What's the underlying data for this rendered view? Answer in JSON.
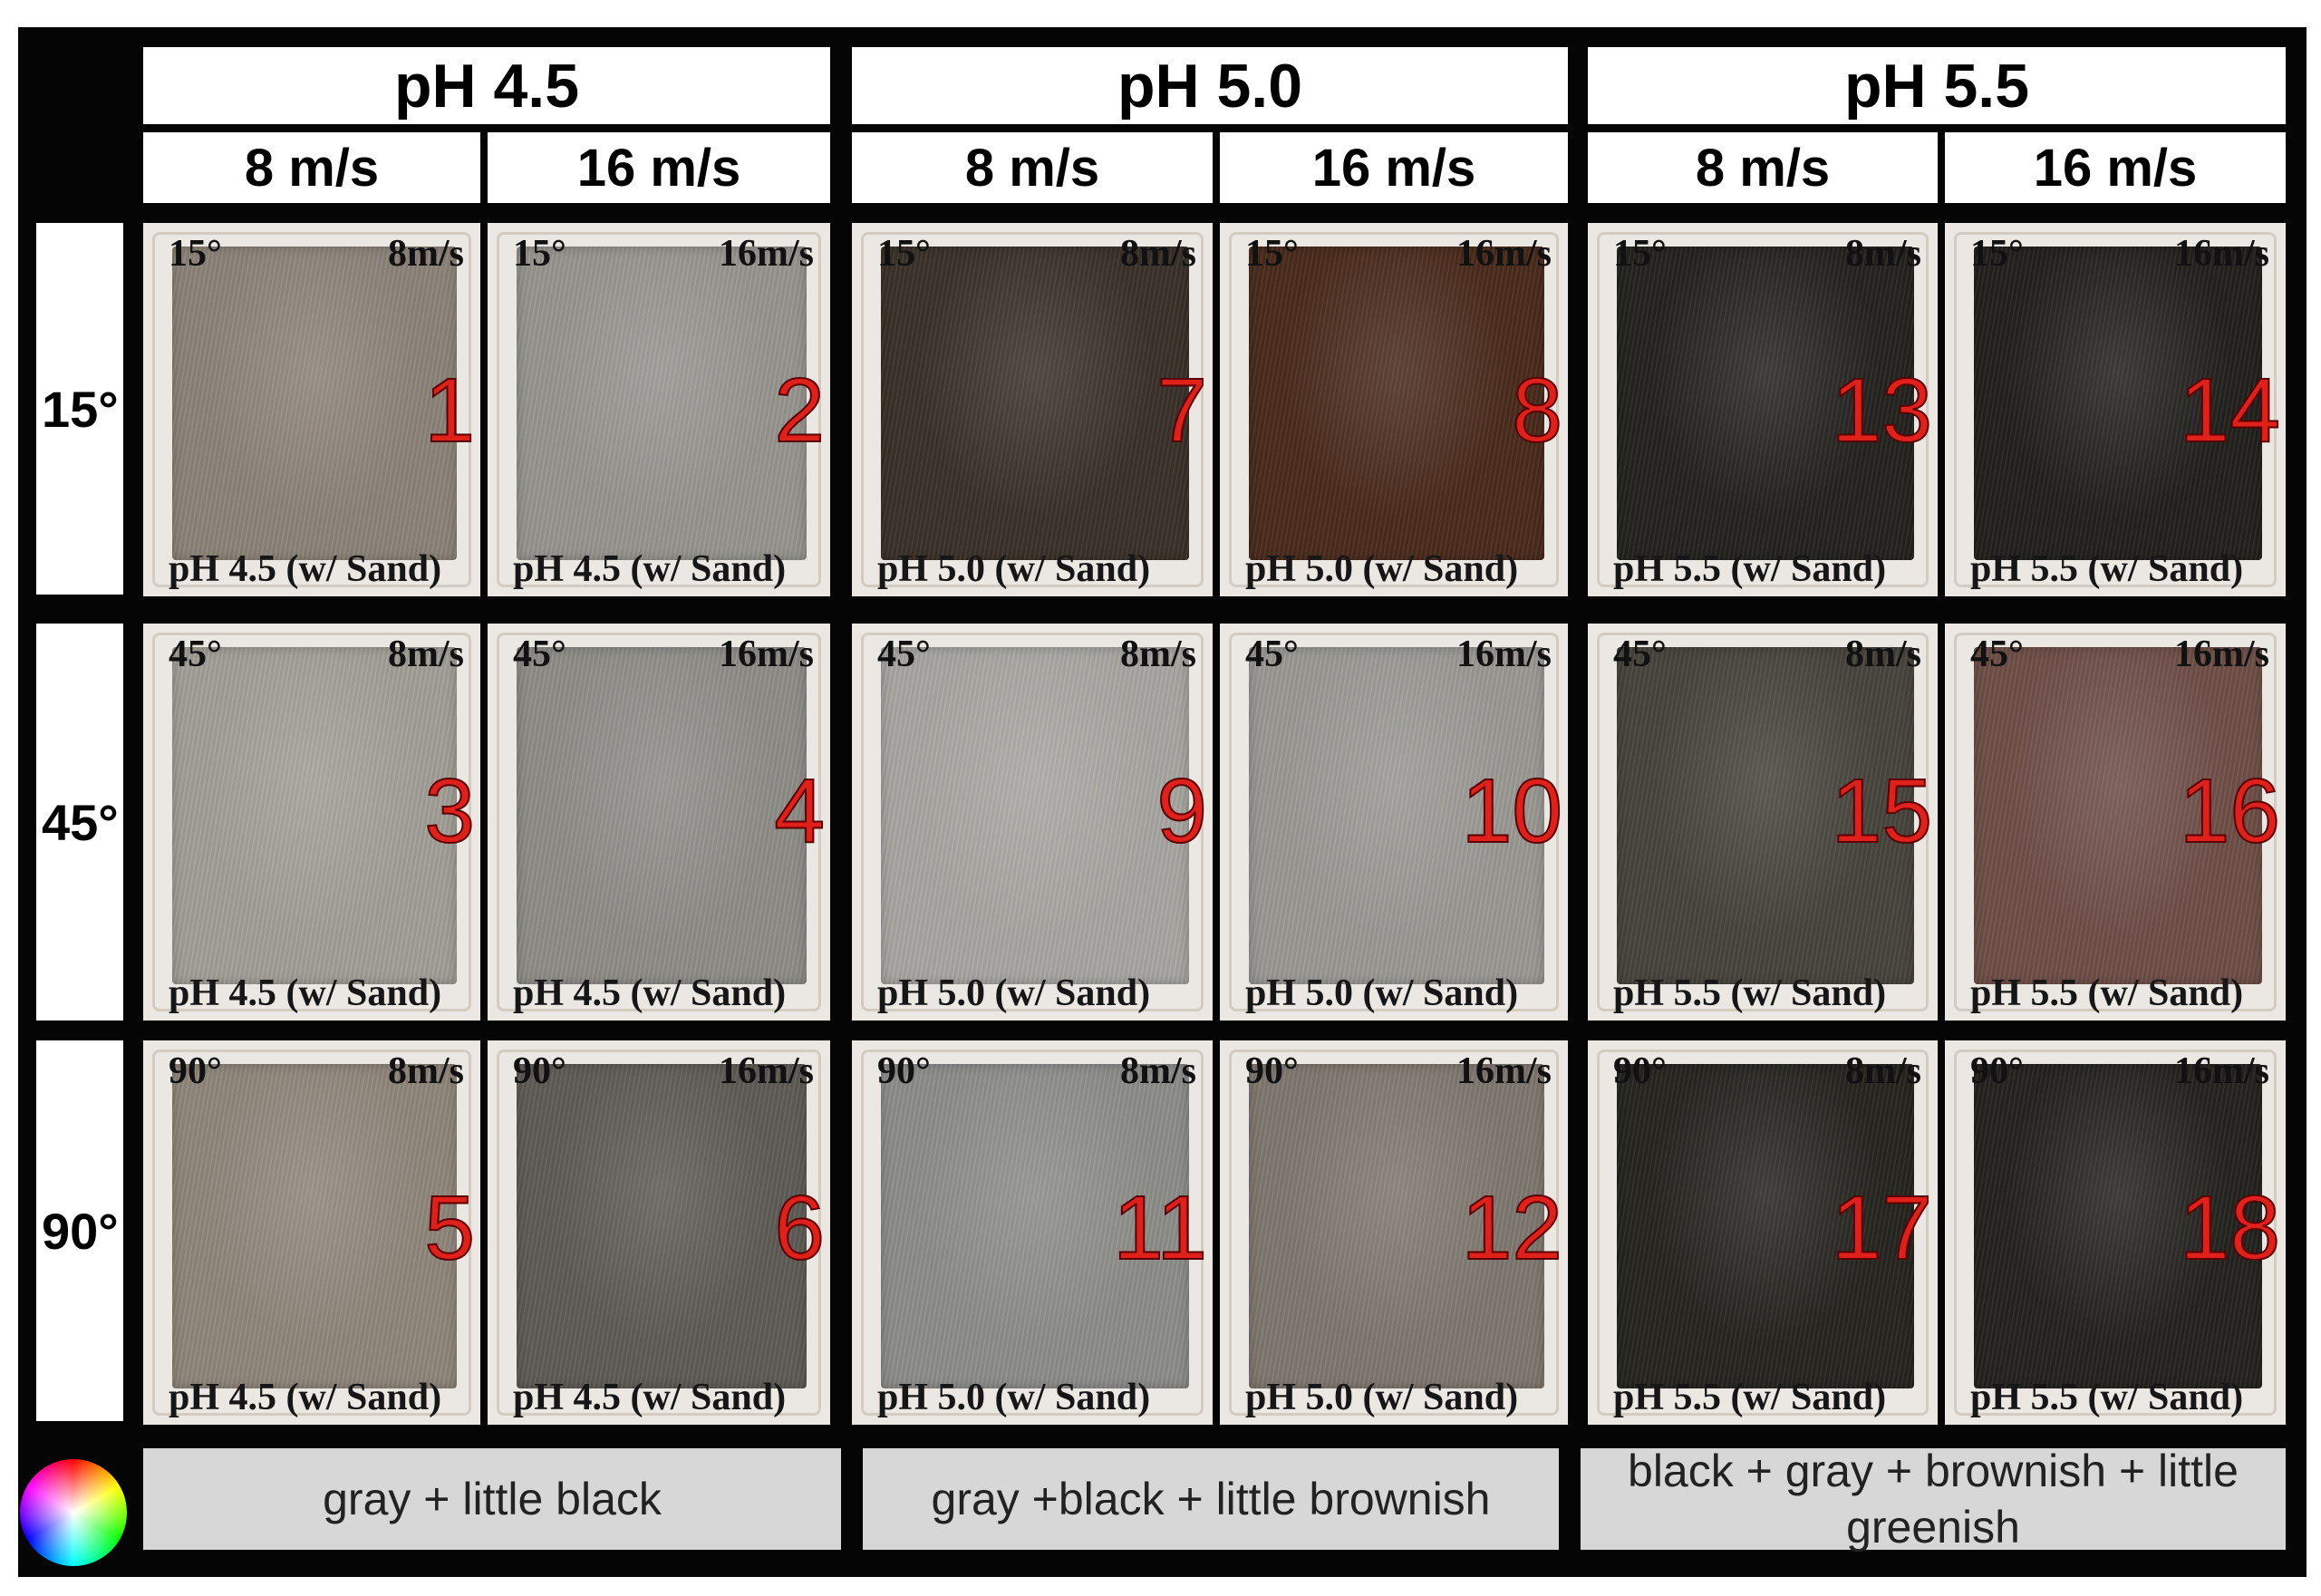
{
  "ph_headers": [
    "pH 4.5",
    "pH 5.0",
    "pH 5.5"
  ],
  "speed_headers": [
    "8 m/s",
    "16 m/s",
    "8 m/s",
    "16 m/s",
    "8 m/s",
    "16 m/s"
  ],
  "angle_headers": [
    "15°",
    "45°",
    "90°"
  ],
  "samples": [
    {
      "n": "1",
      "angle": "15°",
      "speed": "8m/s",
      "label": "pH 4.5 (w/ Sand)",
      "color": "#8c8479"
    },
    {
      "n": "2",
      "angle": "15°",
      "speed": "16m/s",
      "label": "pH 4.5 (w/ Sand)",
      "color": "#97958f"
    },
    {
      "n": "7",
      "angle": "15°",
      "speed": "8m/s",
      "label": "pH 5.0 (w/ Sand)",
      "color": "#3a3229"
    },
    {
      "n": "8",
      "angle": "15°",
      "speed": "16m/s",
      "label": "pH 5.0 (w/ Sand)",
      "color": "#4a2b1c"
    },
    {
      "n": "13",
      "angle": "15°",
      "speed": "8m/s",
      "label": "pH 5.5 (w/ Sand)",
      "color": "#25231f"
    },
    {
      "n": "14",
      "angle": "15°",
      "speed": "16m/s",
      "label": "pH 5.5 (w/ Sand)",
      "color": "#23211d"
    },
    {
      "n": "3",
      "angle": "45°",
      "speed": "8m/s",
      "label": "pH 4.5 (w/ Sand)",
      "color": "#a29f97"
    },
    {
      "n": "4",
      "angle": "45°",
      "speed": "16m/s",
      "label": "pH 4.5 (w/ Sand)",
      "color": "#8e8d88"
    },
    {
      "n": "9",
      "angle": "45°",
      "speed": "8m/s",
      "label": "pH 5.0 (w/ Sand)",
      "color": "#a8a6a1"
    },
    {
      "n": "10",
      "angle": "45°",
      "speed": "16m/s",
      "label": "pH 5.0 (w/ Sand)",
      "color": "#9a9994"
    },
    {
      "n": "15",
      "angle": "45°",
      "speed": "8m/s",
      "label": "pH 5.5 (w/ Sand)",
      "color": "#47443c"
    },
    {
      "n": "16",
      "angle": "45°",
      "speed": "16m/s",
      "label": "pH 5.5 (w/ Sand)",
      "color": "#6f4f48"
    },
    {
      "n": "5",
      "angle": "90°",
      "speed": "8m/s",
      "label": "pH 4.5 (w/ Sand)",
      "color": "#8f877b"
    },
    {
      "n": "6",
      "angle": "90°",
      "speed": "16m/s",
      "label": "pH 4.5 (w/ Sand)",
      "color": "#5f5c56"
    },
    {
      "n": "11",
      "angle": "90°",
      "speed": "8m/s",
      "label": "pH 5.0 (w/ Sand)",
      "color": "#8d8d8a"
    },
    {
      "n": "12",
      "angle": "90°",
      "speed": "16m/s",
      "label": "pH 5.0 (w/ Sand)",
      "color": "#7f7870"
    },
    {
      "n": "17",
      "angle": "90°",
      "speed": "8m/s",
      "label": "pH 5.5 (w/ Sand)",
      "color": "#262520"
    },
    {
      "n": "18",
      "angle": "90°",
      "speed": "16m/s",
      "label": "pH 5.5 (w/ Sand)",
      "color": "#24231f"
    }
  ],
  "descriptions": [
    "gray + little black",
    "gray +black + little brownish",
    "black + gray + brownish + little greenish"
  ]
}
